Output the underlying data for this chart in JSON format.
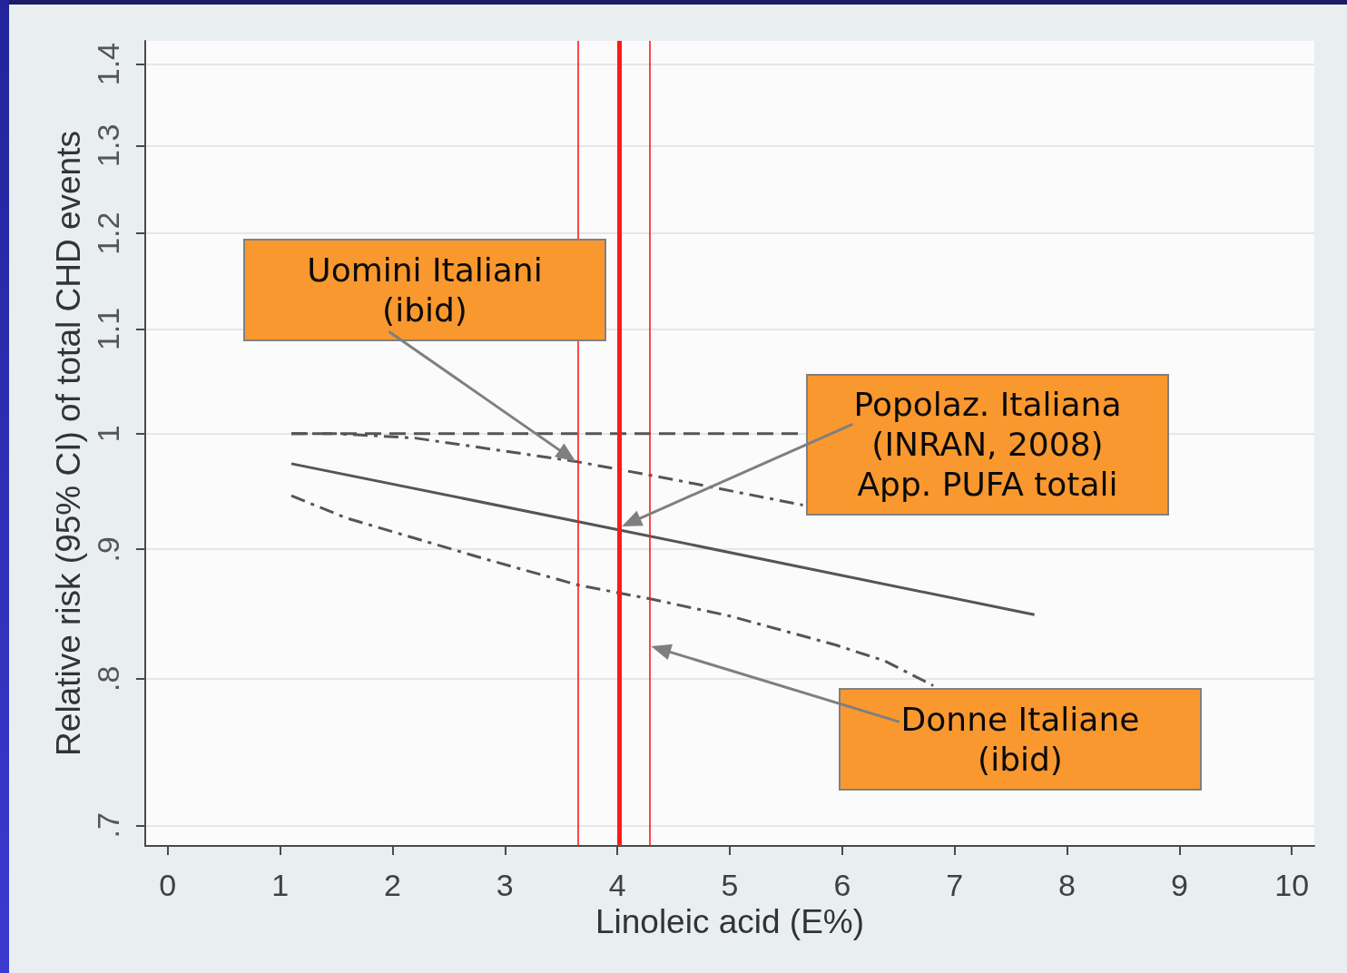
{
  "chart_data": {
    "type": "line",
    "xlabel": "Linoleic acid (E%)",
    "ylabel": "Relative risk (95% CI) of total CHD events",
    "xlim": [
      -0.2,
      10.2
    ],
    "xticks": [
      0,
      1,
      2,
      3,
      4,
      5,
      6,
      7,
      8,
      9,
      10
    ],
    "ylim": [
      0.687,
      1.43
    ],
    "yticks": [
      {
        "value": 0.7,
        "label": ".7"
      },
      {
        "value": 0.8,
        "label": ".8"
      },
      {
        "value": 0.9,
        "label": ".9"
      },
      1,
      1.1,
      1.2,
      1.3,
      1.4
    ],
    "log": "y",
    "grid": "y",
    "series": [
      {
        "color": "#555555",
        "line_style": "solid",
        "x": [
          1.1,
          4.02,
          7.71
        ],
        "values": [
          0.973,
          0.916,
          0.848
        ]
      },
      {
        "color": "#555555",
        "line_style": "dashdot",
        "x": [
          1.1,
          1.5,
          2.2,
          3.63,
          4.5,
          5.65
        ],
        "values": [
          1.0,
          1.0,
          0.996,
          0.975,
          0.959,
          0.937
        ]
      },
      {
        "color": "#555555",
        "line_style": "dashdot",
        "x": [
          1.1,
          1.59,
          2.83,
          3.66,
          4.31,
          5.0,
          5.94,
          6.38,
          6.81
        ],
        "values": [
          0.945,
          0.926,
          0.892,
          0.871,
          0.86,
          0.847,
          0.825,
          0.813,
          0.795
        ]
      },
      {
        "color": "#555555",
        "line_style": "dashed",
        "x": [
          1.1,
          5.65
        ],
        "values": [
          1.0,
          1.0
        ]
      }
    ],
    "ref_lines": [
      {
        "axis": "x",
        "value": 3.65,
        "color": "#ff1a1a"
      },
      {
        "axis": "x",
        "value": 4.02,
        "color": "#ff1a1a"
      },
      {
        "axis": "x",
        "value": 4.29,
        "color": "#ff1a1a"
      }
    ],
    "annotations": [
      {
        "text": "Uomini Italiani\n(ibid)",
        "x": 3.63,
        "y": 0.975
      },
      {
        "text": "Popolaz. Italiana\n(INRAN, 2008)\nApp. PUFA totali",
        "x": 4.04,
        "y": 0.919
      },
      {
        "text": "Donne Italiane\n(ibid)",
        "x": 4.3,
        "y": 0.824
      }
    ]
  }
}
